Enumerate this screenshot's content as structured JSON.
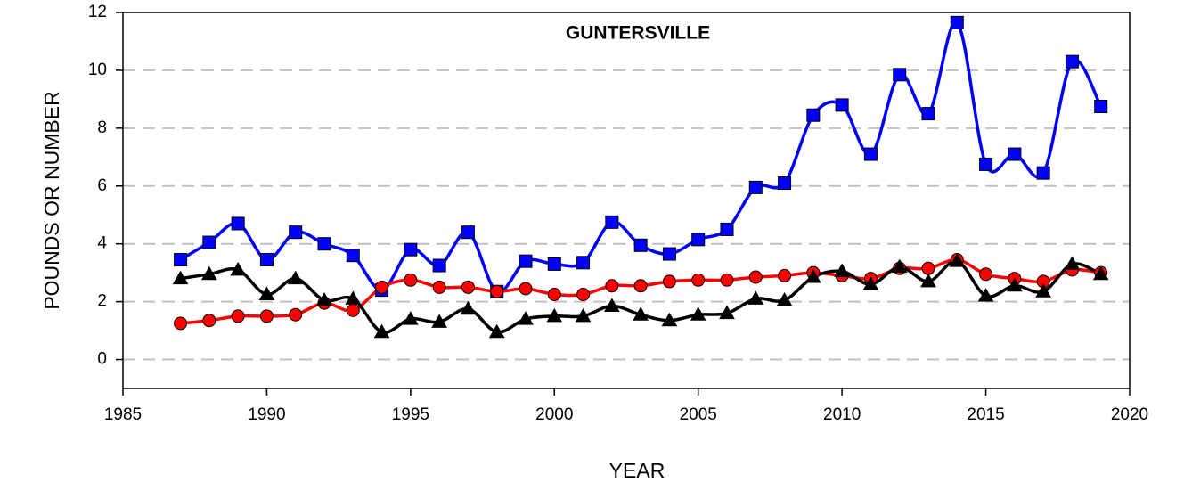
{
  "chart_data": {
    "type": "line",
    "title": "GUNTERSVILLE",
    "x_label": "YEAR",
    "y_label": "POUNDS OR NUMBER",
    "x": [
      1987,
      1988,
      1989,
      1990,
      1991,
      1992,
      1993,
      1994,
      1995,
      1996,
      1997,
      1998,
      1999,
      2000,
      2001,
      2002,
      2003,
      2004,
      2005,
      2006,
      2007,
      2008,
      2009,
      2010,
      2011,
      2012,
      2013,
      2014,
      2015,
      2016,
      2017,
      2018,
      2019
    ],
    "series": [
      {
        "color": "#0000ff",
        "marker": "square",
        "values": [
          3.45,
          4.05,
          4.7,
          3.45,
          4.4,
          4.0,
          3.6,
          2.4,
          3.8,
          3.25,
          4.4,
          2.35,
          3.4,
          3.3,
          3.35,
          4.75,
          3.95,
          3.65,
          4.15,
          4.5,
          5.95,
          6.1,
          8.45,
          8.8,
          7.1,
          9.85,
          8.5,
          11.65,
          6.75,
          7.1,
          6.45,
          10.3,
          8.75
        ]
      },
      {
        "color": "#ff0000",
        "marker": "circle",
        "values": [
          1.25,
          1.35,
          1.5,
          1.5,
          1.55,
          1.95,
          1.7,
          2.5,
          2.75,
          2.5,
          2.5,
          2.35,
          2.45,
          2.25,
          2.25,
          2.55,
          2.55,
          2.7,
          2.75,
          2.75,
          2.85,
          2.9,
          3.0,
          2.9,
          2.8,
          3.15,
          3.15,
          3.45,
          2.95,
          2.8,
          2.7,
          3.1,
          3.0
        ]
      },
      {
        "color": "#000000",
        "marker": "triangle",
        "values": [
          2.8,
          2.95,
          3.1,
          2.25,
          2.8,
          2.05,
          2.1,
          0.95,
          1.4,
          1.3,
          1.75,
          0.95,
          1.4,
          1.5,
          1.5,
          1.85,
          1.55,
          1.35,
          1.55,
          1.6,
          2.1,
          2.05,
          2.85,
          3.05,
          2.6,
          3.2,
          2.7,
          3.4,
          2.2,
          2.55,
          2.35,
          3.3,
          2.95
        ]
      }
    ],
    "xlim": [
      1985,
      2020
    ],
    "xticks": [
      1985,
      1990,
      1995,
      2000,
      2005,
      2010,
      2015,
      2020
    ],
    "ylim": [
      -1,
      12
    ],
    "yticks": [
      0,
      2,
      4,
      6,
      8,
      10,
      12
    ],
    "grid": true,
    "smooth": true
  }
}
